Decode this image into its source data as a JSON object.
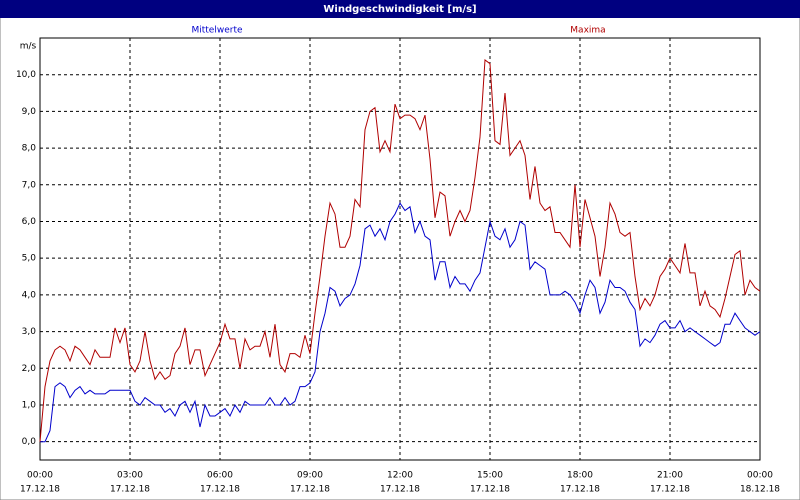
{
  "chart_data": {
    "type": "line",
    "title": "Windgeschwindigkeit [m/s]",
    "y_label": "m/s",
    "x": [
      0,
      10,
      20,
      30,
      40,
      50,
      60,
      70,
      80,
      90,
      100,
      110,
      120,
      130,
      140,
      150,
      160,
      170,
      180,
      190,
      200,
      210,
      220,
      230,
      240,
      250,
      260,
      270,
      280,
      290,
      300,
      310,
      320,
      330,
      340,
      350,
      360,
      370,
      380,
      390,
      400,
      410,
      420,
      430,
      440,
      450,
      460,
      470,
      480,
      490,
      500,
      510,
      520,
      530,
      540,
      550,
      560,
      570,
      580,
      590,
      600,
      610,
      620,
      630,
      640,
      650,
      660,
      670,
      680,
      690,
      700,
      710,
      720,
      730,
      740,
      750,
      760,
      770,
      780,
      790,
      800,
      810,
      820,
      830,
      840,
      850,
      860,
      870,
      880,
      890,
      900,
      910,
      920,
      930,
      940,
      950,
      960,
      970,
      980,
      990,
      1000,
      1010,
      1020,
      1030,
      1040,
      1050,
      1060,
      1070,
      1080,
      1090,
      1100,
      1110,
      1120,
      1130,
      1140,
      1150,
      1160,
      1170,
      1180,
      1190,
      1200,
      1210,
      1220,
      1230,
      1240,
      1250,
      1260,
      1270,
      1280,
      1290,
      1300,
      1310,
      1320,
      1330,
      1340,
      1350,
      1360,
      1370,
      1380,
      1390,
      1400,
      1410,
      1420,
      1430,
      1440
    ],
    "series": [
      {
        "name": "Mittelwerte",
        "color": "#0000cc",
        "values": [
          0.0,
          0.0,
          0.3,
          1.5,
          1.6,
          1.5,
          1.2,
          1.4,
          1.5,
          1.3,
          1.4,
          1.3,
          1.3,
          1.3,
          1.4,
          1.4,
          1.4,
          1.4,
          1.4,
          1.1,
          1.0,
          1.2,
          1.1,
          1.0,
          1.0,
          0.8,
          0.9,
          0.7,
          1.0,
          1.1,
          0.8,
          1.1,
          0.4,
          1.0,
          0.7,
          0.7,
          0.8,
          0.9,
          0.7,
          1.0,
          0.8,
          1.1,
          1.0,
          1.0,
          1.0,
          1.0,
          1.2,
          1.0,
          1.0,
          1.2,
          1.0,
          1.1,
          1.5,
          1.5,
          1.6,
          1.9,
          3.0,
          3.5,
          4.2,
          4.1,
          3.7,
          3.9,
          4.0,
          4.3,
          4.8,
          5.8,
          5.9,
          5.6,
          5.8,
          5.5,
          6.0,
          6.2,
          6.5,
          6.3,
          6.4,
          5.7,
          6.0,
          5.6,
          5.5,
          4.4,
          4.9,
          4.9,
          4.2,
          4.5,
          4.3,
          4.3,
          4.1,
          4.4,
          4.6,
          5.3,
          6.0,
          5.6,
          5.5,
          5.8,
          5.3,
          5.5,
          6.0,
          5.9,
          4.7,
          4.9,
          4.8,
          4.7,
          4.0,
          4.0,
          4.0,
          4.1,
          4.0,
          3.8,
          3.5,
          4.0,
          4.4,
          4.2,
          3.5,
          3.8,
          4.4,
          4.2,
          4.2,
          4.1,
          3.8,
          3.6,
          2.6,
          2.8,
          2.7,
          2.9,
          3.2,
          3.3,
          3.1,
          3.1,
          3.3,
          3.0,
          3.1,
          3.0,
          2.9,
          2.8,
          2.7,
          2.6,
          2.7,
          3.2,
          3.2,
          3.5,
          3.3,
          3.1,
          3.0,
          2.9,
          3.0
        ]
      },
      {
        "name": "Maxima",
        "color": "#b00000",
        "values": [
          0.0,
          1.5,
          2.2,
          2.5,
          2.6,
          2.5,
          2.2,
          2.6,
          2.5,
          2.3,
          2.1,
          2.5,
          2.3,
          2.3,
          2.3,
          3.1,
          2.7,
          3.1,
          2.1,
          1.9,
          2.2,
          3.0,
          2.2,
          1.7,
          1.9,
          1.7,
          1.8,
          2.4,
          2.6,
          3.1,
          2.1,
          2.5,
          2.5,
          1.8,
          2.1,
          2.4,
          2.7,
          3.2,
          2.8,
          2.8,
          2.0,
          2.8,
          2.5,
          2.6,
          2.6,
          3.0,
          2.3,
          3.2,
          2.1,
          1.9,
          2.4,
          2.4,
          2.3,
          2.9,
          2.4,
          3.5,
          4.5,
          5.6,
          6.5,
          6.2,
          5.3,
          5.3,
          5.6,
          6.6,
          6.4,
          8.5,
          9.0,
          9.1,
          7.9,
          8.2,
          7.9,
          9.2,
          8.8,
          8.9,
          8.9,
          8.8,
          8.5,
          8.9,
          7.7,
          6.1,
          6.8,
          6.7,
          5.6,
          6.0,
          6.3,
          6.0,
          6.3,
          7.2,
          8.3,
          10.4,
          10.3,
          8.2,
          8.1,
          9.5,
          7.8,
          8.0,
          8.2,
          7.8,
          6.6,
          7.5,
          6.5,
          6.3,
          6.4,
          5.7,
          5.7,
          5.5,
          5.3,
          7.0,
          5.3,
          6.6,
          6.1,
          5.6,
          4.5,
          5.3,
          6.5,
          6.2,
          5.7,
          5.6,
          5.7,
          4.5,
          3.6,
          3.9,
          3.7,
          4.0,
          4.5,
          4.7,
          5.0,
          4.8,
          4.6,
          5.4,
          4.6,
          4.6,
          3.7,
          4.1,
          3.7,
          3.6,
          3.4,
          3.9,
          4.5,
          5.1,
          5.2,
          4.0,
          4.4,
          4.2,
          4.1
        ]
      }
    ],
    "xlim": [
      0,
      1440
    ],
    "ylim": [
      -0.5,
      11
    ],
    "xticks": [
      {
        "value": 0,
        "label": "00:00"
      },
      {
        "value": 180,
        "label": "03:00"
      },
      {
        "value": 360,
        "label": "06:00"
      },
      {
        "value": 540,
        "label": "09:00"
      },
      {
        "value": 720,
        "label": "12:00"
      },
      {
        "value": 900,
        "label": "15:00"
      },
      {
        "value": 1080,
        "label": "18:00"
      },
      {
        "value": 1260,
        "label": "21:00"
      },
      {
        "value": 1440,
        "label": "00:00"
      }
    ],
    "xtick_dates": [
      "17.12.18",
      "17.12.18",
      "17.12.18",
      "17.12.18",
      "17.12.18",
      "17.12.18",
      "17.12.18",
      "17.12.18",
      "18.12.18"
    ],
    "yticks": [
      {
        "value": 0,
        "label": "0,0"
      },
      {
        "value": 1,
        "label": "1,0"
      },
      {
        "value": 2,
        "label": "2,0"
      },
      {
        "value": 3,
        "label": "3,0"
      },
      {
        "value": 4,
        "label": "4,0"
      },
      {
        "value": 5,
        "label": "5,0"
      },
      {
        "value": 6,
        "label": "6,0"
      },
      {
        "value": 7,
        "label": "7,0"
      },
      {
        "value": 8,
        "label": "8,0"
      },
      {
        "value": 9,
        "label": "9,0"
      },
      {
        "value": 10,
        "label": "10,0"
      }
    ],
    "grid": true
  }
}
